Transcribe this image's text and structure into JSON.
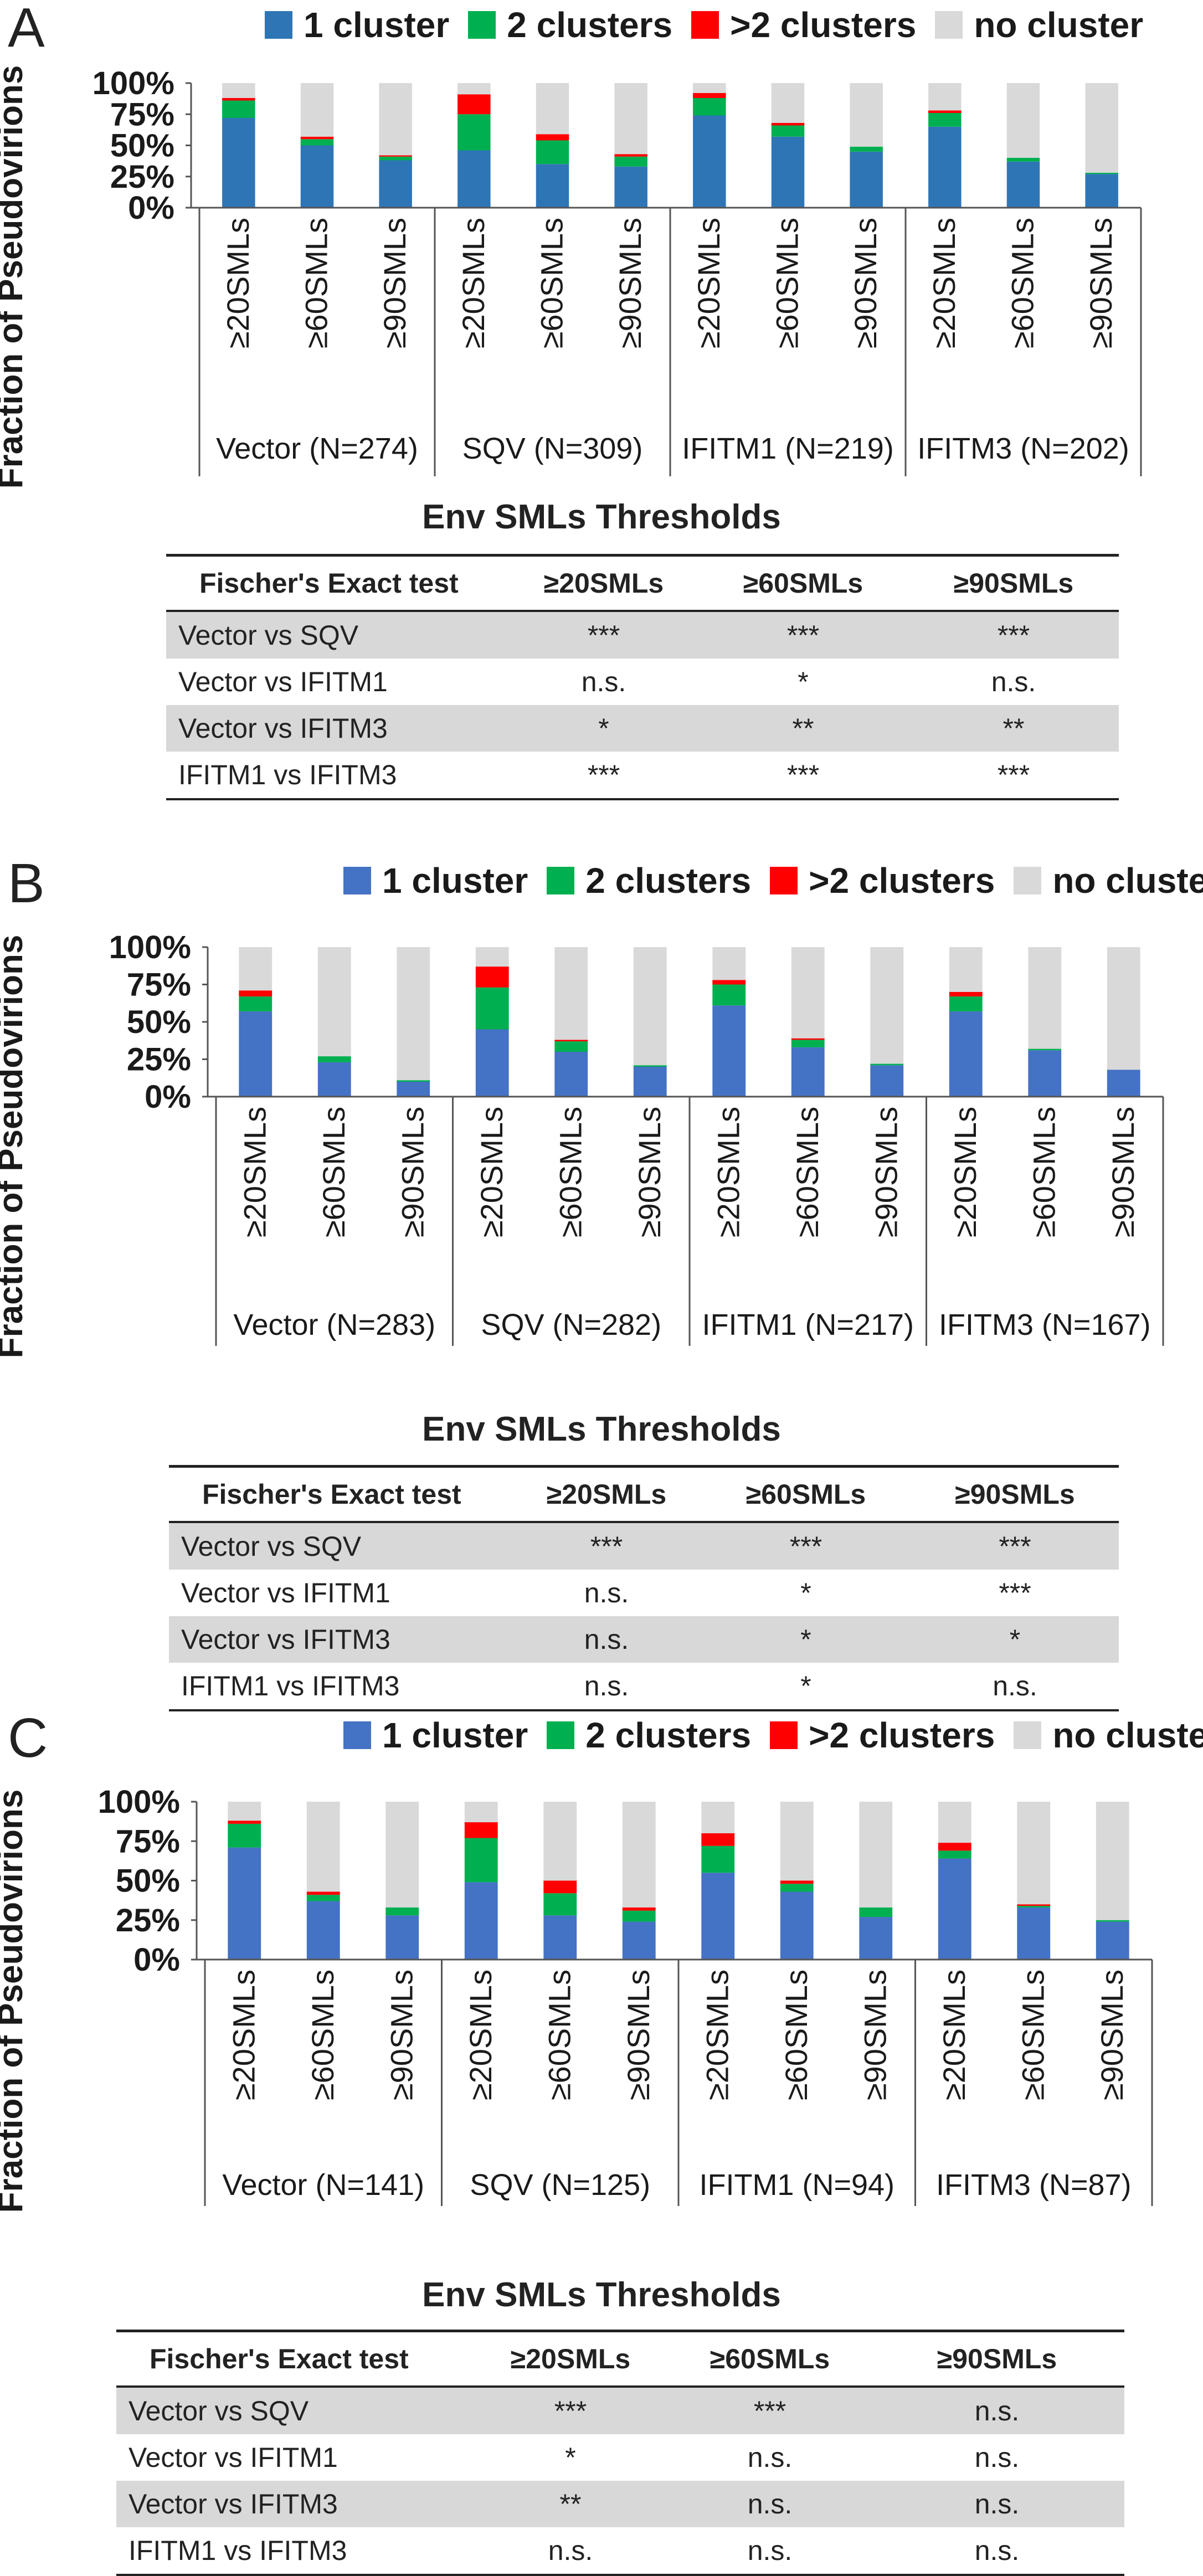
{
  "panels": [
    {
      "letter": "A",
      "legend": [
        "1 cluster",
        "2 clusters",
        ">2 clusters",
        "no cluster"
      ],
      "table": {
        "title": "Env SMLs Thresholds",
        "headers": [
          "Fischer's Exact test",
          "≥20SMLs",
          "≥60SMLs",
          "≥90SMLs"
        ],
        "rows": [
          [
            "Vector vs SQV",
            "***",
            "***",
            "***"
          ],
          [
            "Vector vs IFITM1",
            "n.s.",
            "*",
            "n.s."
          ],
          [
            "Vector vs IFITM3",
            "*",
            "**",
            "**"
          ],
          [
            "IFITM1 vs IFITM3",
            "***",
            "***",
            "***"
          ]
        ]
      }
    },
    {
      "letter": "B",
      "legend": [
        "1 cluster",
        "2 clusters",
        ">2 clusters",
        "no cluster"
      ],
      "table": {
        "title": "Env SMLs Thresholds",
        "headers": [
          "Fischer's Exact test",
          "≥20SMLs",
          "≥60SMLs",
          "≥90SMLs"
        ],
        "rows": [
          [
            "Vector vs SQV",
            "***",
            "***",
            "***"
          ],
          [
            "Vector vs IFITM1",
            "n.s.",
            "*",
            "***"
          ],
          [
            "Vector vs IFITM3",
            "n.s.",
            "*",
            "*"
          ],
          [
            "IFITM1 vs IFITM3",
            "n.s.",
            "*",
            "n.s."
          ]
        ]
      }
    },
    {
      "letter": "C",
      "legend": [
        "1 cluster",
        "2 clusters",
        ">2 clusters",
        "no cluster"
      ],
      "table": {
        "title": "Env SMLs Thresholds",
        "headers": [
          "Fischer's Exact test",
          "≥20SMLs",
          "≥60SMLs",
          "≥90SMLs"
        ],
        "rows": [
          [
            "Vector vs SQV",
            "***",
            "***",
            "n.s."
          ],
          [
            "Vector vs IFITM1",
            "*",
            "n.s.",
            "n.s."
          ],
          [
            "Vector vs IFITM3",
            "**",
            "n.s.",
            "n.s."
          ],
          [
            "IFITM1 vs IFITM3",
            "n.s.",
            "n.s.",
            "n.s."
          ]
        ]
      }
    }
  ],
  "chart_data": [
    {
      "type": "bar",
      "stacked": true,
      "panel": "A",
      "ylabel": "Fraction of Pseudovirions",
      "xlabel": "Env SMLs Thresholds",
      "yticks": [
        "0%",
        "25%",
        "50%",
        "75%",
        "100%"
      ],
      "ylim": [
        0,
        100
      ],
      "categories": [
        "≥20SMLs",
        "≥60SMLs",
        "≥90SMLs",
        "≥20SMLs",
        "≥60SMLs",
        "≥90SMLs",
        "≥20SMLs",
        "≥60SMLs",
        "≥90SMLs",
        "≥20SMLs",
        "≥60SMLs",
        "≥90SMLs"
      ],
      "groups": [
        "Vector (N=274)",
        "SQV (N=309)",
        "IFITM1 (N=219)",
        "IFITM3 (N=202)"
      ],
      "series": [
        {
          "name": "1 cluster",
          "color": "#2e75b6",
          "values": [
            72,
            50,
            38,
            46,
            35,
            33,
            74,
            57,
            45,
            65,
            37,
            27
          ]
        },
        {
          "name": "2 clusters",
          "color": "#00b050",
          "values": [
            14,
            5,
            3,
            29,
            19,
            8,
            14,
            9,
            4,
            11,
            3,
            1
          ]
        },
        {
          "name": ">2 clusters",
          "color": "#ff0000",
          "values": [
            2,
            2,
            1,
            16,
            5,
            2,
            4,
            2,
            0,
            2,
            0,
            0
          ]
        },
        {
          "name": "no cluster",
          "color": "#d9d9d9",
          "values": [
            12,
            43,
            58,
            9,
            41,
            57,
            8,
            32,
            51,
            22,
            60,
            72
          ]
        }
      ]
    },
    {
      "type": "bar",
      "stacked": true,
      "panel": "B",
      "ylabel": "Fraction of Pseudovirions",
      "xlabel": "Env SMLs Thresholds",
      "yticks": [
        "0%",
        "25%",
        "50%",
        "75%",
        "100%"
      ],
      "ylim": [
        0,
        100
      ],
      "categories": [
        "≥20SMLs",
        "≥60SMLs",
        "≥90SMLs",
        "≥20SMLs",
        "≥60SMLs",
        "≥90SMLs",
        "≥20SMLs",
        "≥60SMLs",
        "≥90SMLs",
        "≥20SMLs",
        "≥60SMLs",
        "≥90SMLs"
      ],
      "groups": [
        "Vector (N=283)",
        "SQV (N=282)",
        "IFITM1 (N=217)",
        "IFITM3 (N=167)"
      ],
      "series": [
        {
          "name": "1 cluster",
          "color": "#4472c4",
          "values": [
            57,
            23,
            10,
            45,
            30,
            20,
            61,
            33,
            21,
            57,
            31,
            18
          ]
        },
        {
          "name": "2 clusters",
          "color": "#00b050",
          "values": [
            10,
            4,
            1,
            28,
            7,
            1,
            14,
            5,
            1,
            10,
            1,
            0
          ]
        },
        {
          "name": ">2 clusters",
          "color": "#ff0000",
          "values": [
            4,
            0,
            0,
            14,
            1,
            0,
            3,
            1,
            0,
            3,
            0,
            0
          ]
        },
        {
          "name": "no cluster",
          "color": "#d9d9d9",
          "values": [
            29,
            73,
            89,
            13,
            62,
            79,
            22,
            61,
            78,
            30,
            68,
            82
          ]
        }
      ]
    },
    {
      "type": "bar",
      "stacked": true,
      "panel": "C",
      "ylabel": "Fraction of Pseudovirions",
      "xlabel": "Env SMLs Thresholds",
      "yticks": [
        "0%",
        "25%",
        "50%",
        "75%",
        "100%"
      ],
      "ylim": [
        0,
        100
      ],
      "categories": [
        "≥20SMLs",
        "≥60SMLs",
        "≥90SMLs",
        "≥20SMLs",
        "≥60SMLs",
        "≥90SMLs",
        "≥20SMLs",
        "≥60SMLs",
        "≥90SMLs",
        "≥20SMLs",
        "≥60SMLs",
        "≥90SMLs"
      ],
      "groups": [
        "Vector  (N=141)",
        "SQV (N=125)",
        "IFITM1 (N=94)",
        "IFITM3 (N=87)"
      ],
      "series": [
        {
          "name": "1 cluster",
          "color": "#4472c4",
          "values": [
            71,
            37,
            28,
            49,
            28,
            24,
            55,
            43,
            27,
            64,
            33,
            24
          ]
        },
        {
          "name": "2 clusters",
          "color": "#00b050",
          "values": [
            15,
            4,
            5,
            28,
            14,
            7,
            17,
            5,
            6,
            5,
            1,
            1
          ]
        },
        {
          "name": ">2 clusters",
          "color": "#ff0000",
          "values": [
            2,
            2,
            0,
            10,
            8,
            2,
            8,
            2,
            0,
            5,
            1,
            0
          ]
        },
        {
          "name": "no cluster",
          "color": "#d9d9d9",
          "values": [
            12,
            57,
            67,
            13,
            50,
            67,
            20,
            50,
            67,
            26,
            65,
            75
          ]
        }
      ]
    }
  ]
}
